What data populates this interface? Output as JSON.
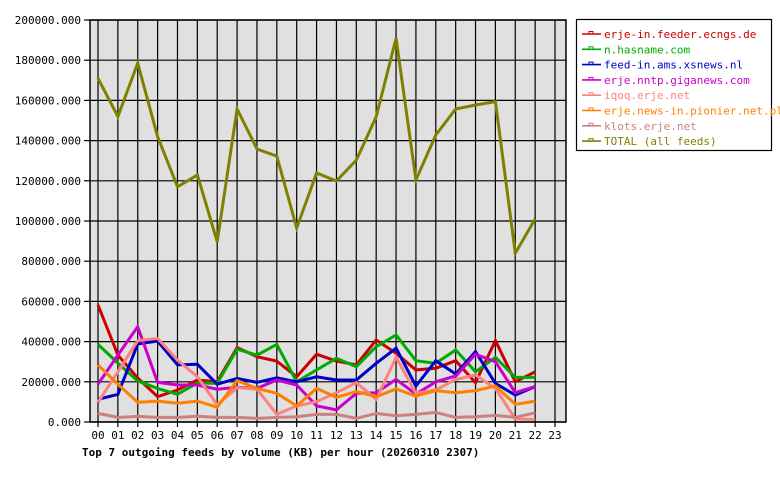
{
  "chart_data": {
    "type": "line",
    "title": "Top 7 outgoing feeds by volume (KB) per hour (20260310 2307)",
    "xlabel": "",
    "ylabel": "",
    "ylim": [
      0,
      200000
    ],
    "yticks": [
      "0.000",
      "20000.000",
      "40000.000",
      "60000.000",
      "80000.000",
      "100000.000",
      "120000.000",
      "140000.000",
      "160000.000",
      "180000.000",
      "200000.000"
    ],
    "categories": [
      "00",
      "01",
      "02",
      "03",
      "04",
      "05",
      "06",
      "07",
      "08",
      "09",
      "10",
      "11",
      "12",
      "13",
      "14",
      "15",
      "16",
      "17",
      "18",
      "19",
      "20",
      "21",
      "22",
      "23"
    ],
    "grid": true,
    "legend_position": "right",
    "plot_background": "#e0e0e0",
    "series": [
      {
        "name": "erje-in.feeder.ecngs.de",
        "color": "#cc0000",
        "values": [
          58200,
          33300,
          21900,
          12600,
          15900,
          20900,
          20000,
          37000,
          32500,
          30300,
          22500,
          33700,
          30300,
          28400,
          40800,
          34200,
          25900,
          26700,
          30500,
          19600,
          40500,
          20000,
          25000
        ]
      },
      {
        "name": "n.hasname.com",
        "color": "#00aa00",
        "values": [
          38600,
          29300,
          20400,
          16700,
          13800,
          19400,
          19200,
          36200,
          33300,
          38600,
          20000,
          25900,
          31700,
          27500,
          37500,
          43300,
          30500,
          29200,
          35800,
          25000,
          32200,
          22200,
          22200
        ]
      },
      {
        "name": "feed-in.ams.xsnews.nl",
        "color": "#0000cc",
        "values": [
          11300,
          13800,
          38800,
          40300,
          28400,
          28700,
          18800,
          21700,
          19700,
          22000,
          20000,
          22500,
          20900,
          20900,
          29200,
          36700,
          17900,
          30500,
          23900,
          35000,
          19200,
          13400,
          17600
        ]
      },
      {
        "name": "erje.nntp.giganews.com",
        "color": "#cc00cc",
        "values": [
          18800,
          33300,
          47400,
          19700,
          18400,
          18400,
          16300,
          17300,
          16700,
          20900,
          18400,
          8000,
          6000,
          14300,
          14600,
          21200,
          13900,
          20000,
          22900,
          33700,
          30000,
          14600,
          17600
        ]
      },
      {
        "name": "iqoq.erje.net",
        "color": "#ff8080",
        "values": [
          9800,
          25000,
          40500,
          41600,
          30800,
          22500,
          8500,
          17100,
          16300,
          3800,
          8000,
          10100,
          14600,
          19600,
          11300,
          32200,
          14300,
          15900,
          21200,
          23400,
          16700,
          1500,
          1300
        ]
      },
      {
        "name": "erje.news-in.pionier.net.pl",
        "color": "#ff8000",
        "values": [
          28400,
          18800,
          9800,
          10400,
          9300,
          10400,
          7300,
          20600,
          16700,
          14300,
          8000,
          16700,
          12300,
          15100,
          12600,
          16400,
          12900,
          15600,
          14600,
          15600,
          17900,
          8800,
          10400
        ]
      },
      {
        "name": "klots.erje.net",
        "color": "#cc8080",
        "values": [
          4300,
          2300,
          2800,
          2300,
          2300,
          2900,
          2300,
          2300,
          1800,
          2300,
          2600,
          3800,
          3800,
          1800,
          4300,
          3100,
          3800,
          4800,
          2300,
          2600,
          3300,
          2300,
          4600
        ]
      },
      {
        "name": "TOTAL (all feeds)",
        "color": "#808000",
        "values": [
          171000,
          152000,
          178500,
          142000,
          117000,
          122900,
          89700,
          155700,
          135800,
          132300,
          96500,
          123900,
          119900,
          130300,
          151900,
          190900,
          120400,
          142800,
          155700,
          157700,
          159400,
          84000,
          101000
        ]
      }
    ]
  }
}
